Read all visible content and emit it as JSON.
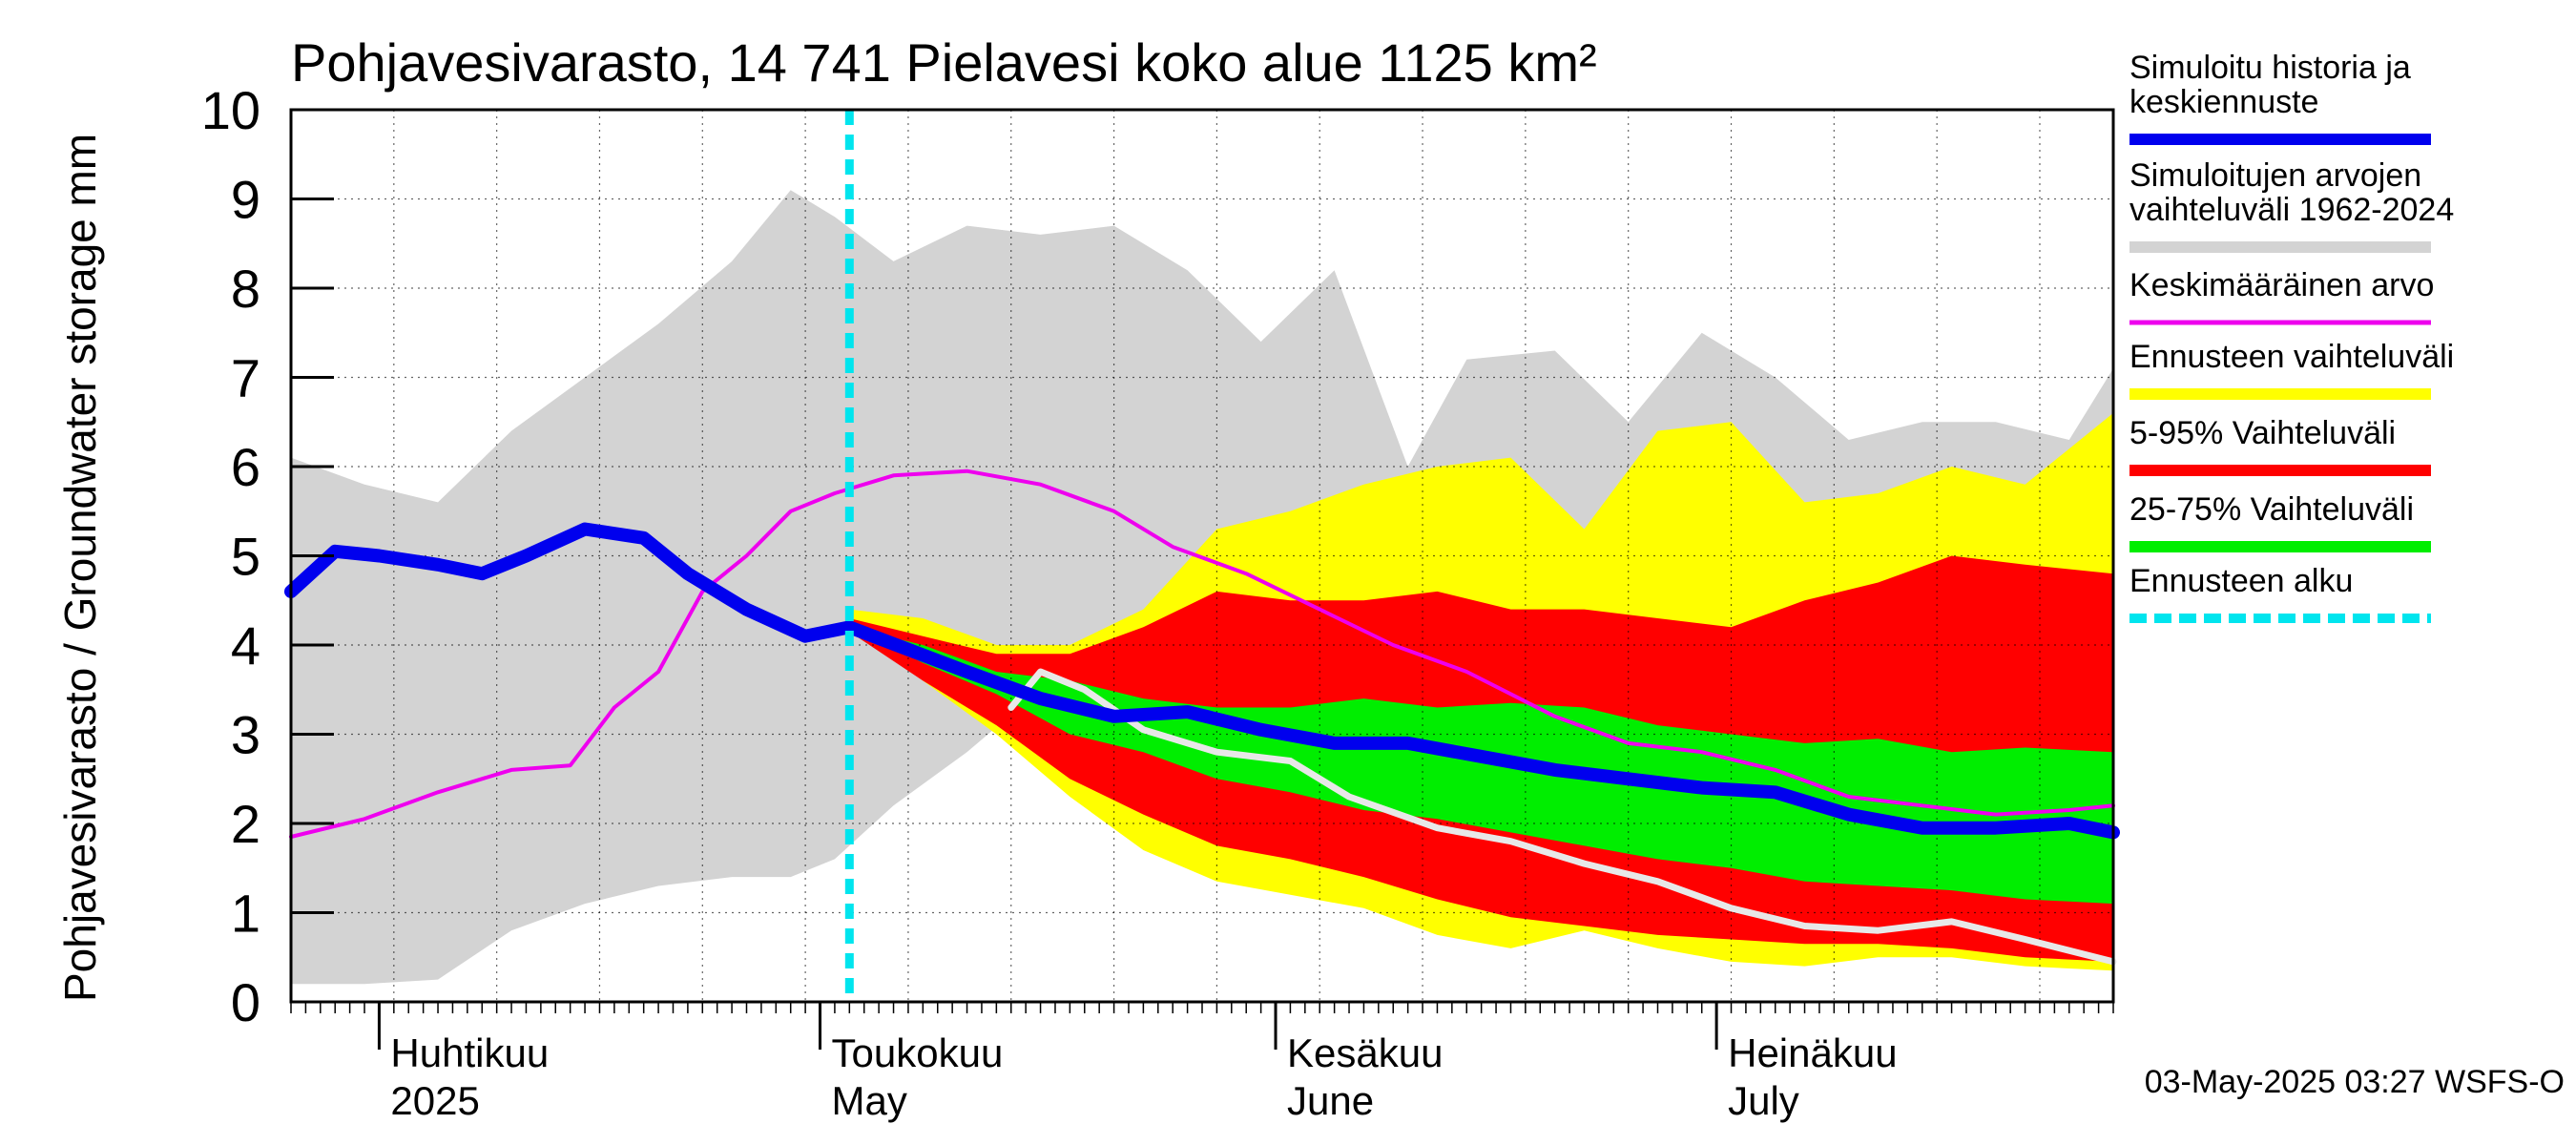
{
  "chart_data": {
    "type": "area",
    "title": "Pohjavesivarasto, 14 741 Pielavesi koko alue 1125 km²",
    "ylabel": "Pohjavesivarasto / Groundwater storage   mm",
    "ylim": [
      0,
      10
    ],
    "yticks": [
      "0",
      "1",
      "2",
      "3",
      "4",
      "5",
      "6",
      "7",
      "8",
      "9",
      "10"
    ],
    "x_start": "2025-03-26",
    "x_end": "2025-07-28",
    "forecast_start": "2025-05-03",
    "month_labels": [
      {
        "date": "2025-04-01",
        "line1": "Huhtikuu",
        "line2": "2025"
      },
      {
        "date": "2025-05-01",
        "line1": "Toukokuu",
        "line2": "May"
      },
      {
        "date": "2025-06-01",
        "line1": "Kesäkuu",
        "line2": "June"
      },
      {
        "date": "2025-07-01",
        "line1": "Heinäkuu",
        "line2": "July"
      }
    ],
    "legend": [
      {
        "label": "Simuloitu historia ja keskiennuste",
        "color": "#0000ee"
      },
      {
        "label": "Simuloitujen arvojen vaihteluväli 1962-2024",
        "color": "#d3d3d3"
      },
      {
        "label": "Keskimääräinen arvo",
        "color": "#ee00ee"
      },
      {
        "label": "Ennusteen vaihteluväli",
        "color": "#ffff00"
      },
      {
        "label": "5-95% Vaihteluväli",
        "color": "#ff0000"
      },
      {
        "label": "25-75% Vaihteluväli",
        "color": "#00ee00"
      },
      {
        "label": "Ennusteen alku",
        "color": "#00e5ee"
      }
    ],
    "footer": "03-May-2025 03:27 WSFS-O",
    "series": {
      "hist_range": {
        "name": "Simuloitujen arvojen vaihteluväli 1962-2024",
        "x": [
          "2025-03-26",
          "2025-03-31",
          "2025-04-05",
          "2025-04-10",
          "2025-04-15",
          "2025-04-20",
          "2025-04-25",
          "2025-04-29",
          "2025-05-02",
          "2025-05-06",
          "2025-05-11",
          "2025-05-16",
          "2025-05-21",
          "2025-05-26",
          "2025-05-31",
          "2025-06-05",
          "2025-06-10",
          "2025-06-14",
          "2025-06-20",
          "2025-06-25",
          "2025-06-30",
          "2025-07-05",
          "2025-07-10",
          "2025-07-15",
          "2025-07-20",
          "2025-07-25",
          "2025-07-28"
        ],
        "low": [
          0.2,
          0.2,
          0.25,
          0.8,
          1.1,
          1.3,
          1.4,
          1.4,
          1.6,
          2.2,
          2.8,
          3.5,
          4.0,
          4.5,
          4.5,
          4.5,
          4.5,
          4.5,
          4.5,
          4.5,
          4.5,
          4.5,
          4.5,
          4.5,
          4.5,
          4.5,
          4.5
        ],
        "high": [
          6.1,
          5.8,
          5.6,
          6.4,
          7.0,
          7.6,
          8.3,
          9.1,
          8.8,
          8.3,
          8.7,
          8.6,
          8.7,
          8.2,
          7.4,
          8.2,
          6.0,
          7.2,
          7.3,
          6.5,
          7.5,
          7.0,
          6.3,
          6.5,
          6.5,
          6.3,
          7.1
        ]
      },
      "forecast_range": {
        "name": "Ennusteen vaihteluväli",
        "x": [
          "2025-05-03",
          "2025-05-08",
          "2025-05-13",
          "2025-05-18",
          "2025-05-23",
          "2025-05-28",
          "2025-06-02",
          "2025-06-07",
          "2025-06-12",
          "2025-06-17",
          "2025-06-22",
          "2025-06-27",
          "2025-07-02",
          "2025-07-07",
          "2025-07-12",
          "2025-07-17",
          "2025-07-22",
          "2025-07-28"
        ],
        "low": [
          4.2,
          3.6,
          3.0,
          2.3,
          1.7,
          1.35,
          1.2,
          1.05,
          0.75,
          0.6,
          0.8,
          0.6,
          0.45,
          0.4,
          0.5,
          0.5,
          0.4,
          0.35
        ],
        "high": [
          4.4,
          4.3,
          4.0,
          4.0,
          4.4,
          5.3,
          5.5,
          5.8,
          6.0,
          6.1,
          5.3,
          6.4,
          6.5,
          5.6,
          5.7,
          6.0,
          5.8,
          6.6
        ]
      },
      "p5_95": {
        "name": "5-95% Vaihteluväli",
        "x": [
          "2025-05-03",
          "2025-05-08",
          "2025-05-13",
          "2025-05-18",
          "2025-05-23",
          "2025-05-28",
          "2025-06-02",
          "2025-06-07",
          "2025-06-12",
          "2025-06-17",
          "2025-06-22",
          "2025-06-27",
          "2025-07-02",
          "2025-07-07",
          "2025-07-12",
          "2025-07-17",
          "2025-07-22",
          "2025-07-28"
        ],
        "low": [
          4.15,
          3.6,
          3.1,
          2.5,
          2.1,
          1.75,
          1.6,
          1.4,
          1.15,
          0.95,
          0.85,
          0.75,
          0.7,
          0.65,
          0.65,
          0.6,
          0.5,
          0.45
        ],
        "high": [
          4.3,
          4.1,
          3.9,
          3.9,
          4.2,
          4.6,
          4.5,
          4.5,
          4.6,
          4.4,
          4.4,
          4.3,
          4.2,
          4.5,
          4.7,
          5.0,
          4.9,
          4.8
        ]
      },
      "p25_75": {
        "name": "25-75% Vaihteluväli",
        "x": [
          "2025-05-03",
          "2025-05-08",
          "2025-05-13",
          "2025-05-18",
          "2025-05-23",
          "2025-05-28",
          "2025-06-02",
          "2025-06-07",
          "2025-06-12",
          "2025-06-17",
          "2025-06-22",
          "2025-06-27",
          "2025-07-02",
          "2025-07-07",
          "2025-07-12",
          "2025-07-17",
          "2025-07-22",
          "2025-07-28"
        ],
        "low": [
          4.2,
          3.8,
          3.45,
          3.0,
          2.8,
          2.5,
          2.35,
          2.15,
          2.05,
          1.9,
          1.75,
          1.6,
          1.5,
          1.35,
          1.3,
          1.25,
          1.15,
          1.1
        ],
        "high": [
          4.2,
          4.0,
          3.7,
          3.6,
          3.4,
          3.3,
          3.3,
          3.4,
          3.3,
          3.35,
          3.3,
          3.1,
          3.0,
          2.9,
          2.95,
          2.8,
          2.85,
          2.8
        ]
      },
      "mean": {
        "name": "Keskimääräinen arvo",
        "x": [
          "2025-03-26",
          "2025-03-31",
          "2025-04-05",
          "2025-04-10",
          "2025-04-14",
          "2025-04-17",
          "2025-04-20",
          "2025-04-23",
          "2025-04-26",
          "2025-04-29",
          "2025-05-02",
          "2025-05-06",
          "2025-05-11",
          "2025-05-16",
          "2025-05-21",
          "2025-05-25",
          "2025-05-30",
          "2025-06-04",
          "2025-06-09",
          "2025-06-14",
          "2025-06-20",
          "2025-06-25",
          "2025-06-30",
          "2025-07-05",
          "2025-07-10",
          "2025-07-15",
          "2025-07-20",
          "2025-07-25",
          "2025-07-28"
        ],
        "values": [
          1.85,
          2.05,
          2.35,
          2.6,
          2.65,
          3.3,
          3.7,
          4.6,
          5.0,
          5.5,
          5.7,
          5.9,
          5.95,
          5.8,
          5.5,
          5.1,
          4.8,
          4.4,
          4.0,
          3.7,
          3.2,
          2.9,
          2.8,
          2.6,
          2.3,
          2.2,
          2.1,
          2.15,
          2.2
        ]
      },
      "simulated": {
        "name": "Simuloitu historia ja keskiennuste",
        "x": [
          "2025-03-26",
          "2025-03-29",
          "2025-04-01",
          "2025-04-05",
          "2025-04-08",
          "2025-04-11",
          "2025-04-15",
          "2025-04-19",
          "2025-04-22",
          "2025-04-26",
          "2025-04-30",
          "2025-05-03",
          "2025-05-07",
          "2025-05-11",
          "2025-05-16",
          "2025-05-21",
          "2025-05-26",
          "2025-05-31",
          "2025-06-05",
          "2025-06-10",
          "2025-06-15",
          "2025-06-20",
          "2025-06-25",
          "2025-06-30",
          "2025-07-05",
          "2025-07-10",
          "2025-07-15",
          "2025-07-20",
          "2025-07-25",
          "2025-07-28"
        ],
        "values": [
          4.6,
          5.05,
          5.0,
          4.9,
          4.8,
          5.0,
          5.3,
          5.2,
          4.8,
          4.4,
          4.1,
          4.2,
          3.95,
          3.7,
          3.4,
          3.2,
          3.25,
          3.05,
          2.9,
          2.9,
          2.75,
          2.6,
          2.5,
          2.4,
          2.35,
          2.1,
          1.95,
          1.95,
          2.0,
          1.9
        ]
      },
      "observed": {
        "name": "observed",
        "x": [
          "2025-05-14",
          "2025-05-16",
          "2025-05-19",
          "2025-05-23",
          "2025-05-28",
          "2025-06-02",
          "2025-06-06",
          "2025-06-12",
          "2025-06-17",
          "2025-06-22",
          "2025-06-27",
          "2025-07-02",
          "2025-07-07",
          "2025-07-12",
          "2025-07-17",
          "2025-07-22",
          "2025-07-28"
        ],
        "values": [
          3.3,
          3.7,
          3.5,
          3.05,
          2.8,
          2.7,
          2.3,
          1.95,
          1.8,
          1.55,
          1.35,
          1.05,
          0.85,
          0.8,
          0.9,
          0.7,
          0.45
        ]
      }
    }
  }
}
